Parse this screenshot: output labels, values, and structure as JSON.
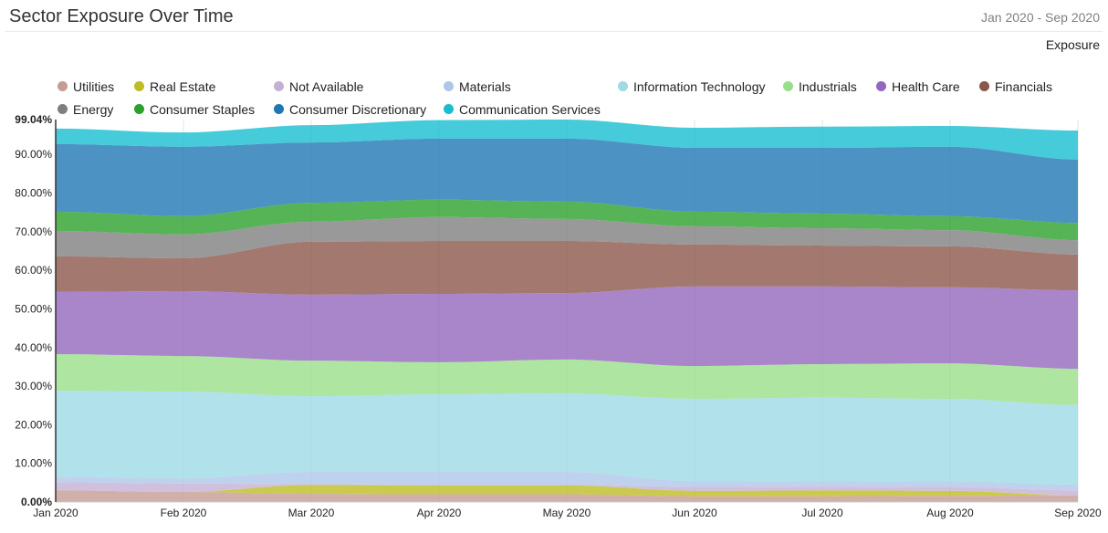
{
  "header": {
    "date_range": "Jan 2020 - Sep 2020"
  },
  "chart_data": {
    "type": "area",
    "stacked": true,
    "title": "Sector Exposure Over Time",
    "ylabel": "Exposure",
    "xlabel": "",
    "legend_position": "top",
    "grid": {
      "x": true,
      "y": false
    },
    "x": [
      "Jan 2020",
      "Feb 2020",
      "Mar 2020",
      "Apr 2020",
      "May 2020",
      "Jun 2020",
      "Jul 2020",
      "Aug 2020",
      "Sep 2020"
    ],
    "ylim": [
      0,
      99.04
    ],
    "y_ticks": [
      0,
      10,
      20,
      30,
      40,
      50,
      60,
      70,
      80,
      90,
      99.04
    ],
    "y_tick_labels": [
      "0.00%",
      "10.00%",
      "20.00%",
      "30.00%",
      "40.00%",
      "50.00%",
      "60.00%",
      "70.00%",
      "80.00%",
      "90.00%",
      "99.04%"
    ],
    "series": [
      {
        "name": "Utilities",
        "color": "#c49c94",
        "values": [
          3.0,
          2.6,
          2.1,
          2.0,
          2.0,
          1.5,
          1.5,
          1.6,
          1.7
        ]
      },
      {
        "name": "Real Estate",
        "color": "#bcbd22",
        "values": [
          0.0,
          0.0,
          2.3,
          2.3,
          2.3,
          1.4,
          1.5,
          1.3,
          0.0
        ]
      },
      {
        "name": "Not Available",
        "color": "#c5b0d5",
        "values": [
          2.1,
          2.2,
          0.2,
          0.2,
          0.2,
          1.0,
          1.0,
          1.0,
          1.3
        ]
      },
      {
        "name": "Materials",
        "color": "#aec7e8",
        "values": [
          1.5,
          1.3,
          3.2,
          3.3,
          3.3,
          1.5,
          1.4,
          1.5,
          1.5
        ]
      },
      {
        "name": "Information Technology",
        "color": "#9edae5",
        "values": [
          22.2,
          22.5,
          19.6,
          20.1,
          20.3,
          21.3,
          21.6,
          21.3,
          20.6
        ]
      },
      {
        "name": "Industrials",
        "color": "#98df8a",
        "values": [
          9.5,
          9.2,
          9.2,
          8.3,
          8.8,
          8.5,
          8.7,
          9.2,
          9.4
        ]
      },
      {
        "name": "Health Care",
        "color": "#9467bd",
        "values": [
          16.1,
          16.8,
          17.1,
          17.7,
          17.2,
          20.6,
          20.1,
          19.7,
          20.3
        ]
      },
      {
        "name": "Financials",
        "color": "#8c564b",
        "values": [
          9.2,
          8.5,
          13.7,
          13.7,
          13.5,
          10.9,
          10.6,
          10.6,
          9.3
        ]
      },
      {
        "name": "Energy",
        "color": "#7f7f7f",
        "values": [
          6.6,
          6.2,
          5.2,
          6.2,
          5.7,
          4.7,
          4.5,
          4.2,
          3.7
        ]
      },
      {
        "name": "Consumer Staples",
        "color": "#2ca02c",
        "values": [
          5.0,
          4.7,
          4.9,
          4.5,
          4.5,
          3.8,
          3.8,
          3.6,
          4.5
        ]
      },
      {
        "name": "Consumer Discretionary",
        "color": "#1f77b4",
        "values": [
          17.5,
          18.0,
          15.6,
          15.8,
          16.3,
          16.5,
          17.0,
          18.0,
          16.4
        ]
      },
      {
        "name": "Communication Services",
        "color": "#17becf",
        "values": [
          4.0,
          3.7,
          4.5,
          4.8,
          4.94,
          5.2,
          5.5,
          5.4,
          7.5
        ]
      }
    ]
  }
}
